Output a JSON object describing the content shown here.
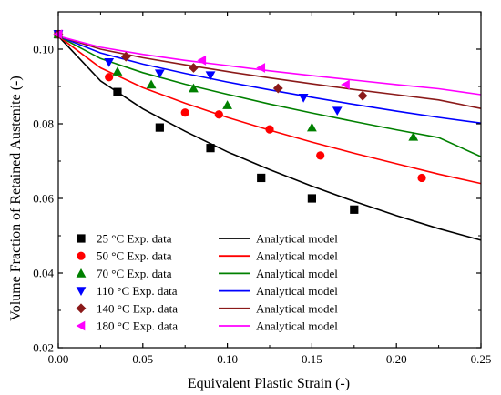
{
  "chart_data": {
    "type": "scatter",
    "xlabel": "Equivalent Plastic Strain (-)",
    "ylabel": "Volume Fraction of Retained Austenite (-)",
    "xlim": [
      0.0,
      0.25
    ],
    "ylim": [
      0.02,
      0.11
    ],
    "x_ticks": [
      0.0,
      0.05,
      0.1,
      0.15,
      0.2,
      0.25
    ],
    "x_tick_labels": [
      "0.00",
      "0.05",
      "0.10",
      "0.15",
      "0.20",
      "0.25"
    ],
    "y_ticks": [
      0.02,
      0.04,
      0.06,
      0.08,
      0.1
    ],
    "y_tick_labels": [
      "0.02",
      "0.04",
      "0.06",
      "0.08",
      "0.10"
    ],
    "grid": false,
    "legend_position": "lower-left",
    "series": [
      {
        "name": "25 °C Exp. data",
        "marker": "square",
        "color": "#000000",
        "x": [
          0.0,
          0.035,
          0.06,
          0.09,
          0.12,
          0.15,
          0.175
        ],
        "y": [
          0.104,
          0.0885,
          0.079,
          0.0735,
          0.0655,
          0.06,
          0.057
        ]
      },
      {
        "name": "50 °C Exp. data",
        "marker": "circle",
        "color": "#ff0000",
        "x": [
          0.0,
          0.03,
          0.075,
          0.095,
          0.125,
          0.155,
          0.215
        ],
        "y": [
          0.104,
          0.0925,
          0.083,
          0.0825,
          0.0785,
          0.0715,
          0.0655
        ]
      },
      {
        "name": "70 °C Exp. data",
        "marker": "triangle-up",
        "color": "#008000",
        "x": [
          0.0,
          0.035,
          0.055,
          0.08,
          0.1,
          0.15,
          0.21
        ],
        "y": [
          0.104,
          0.094,
          0.0905,
          0.0895,
          0.085,
          0.079,
          0.0765
        ]
      },
      {
        "name": "110 °C Exp. data",
        "marker": "triangle-down",
        "color": "#0000ff",
        "x": [
          0.0,
          0.03,
          0.06,
          0.09,
          0.145,
          0.165
        ],
        "y": [
          0.104,
          0.0965,
          0.0935,
          0.093,
          0.087,
          0.0835
        ]
      },
      {
        "name": "140 °C Exp. data",
        "marker": "diamond",
        "color": "#8b1a1a",
        "x": [
          0.0,
          0.04,
          0.08,
          0.13,
          0.18
        ],
        "y": [
          0.104,
          0.098,
          0.095,
          0.0895,
          0.0875
        ]
      },
      {
        "name": "180 °C Exp. data",
        "marker": "triangle-left",
        "color": "#ff00ff",
        "x": [
          0.0,
          0.085,
          0.12,
          0.17
        ],
        "y": [
          0.104,
          0.097,
          0.095,
          0.0905
        ]
      }
    ],
    "model_curves": [
      {
        "name": "Analytical model",
        "color": "#000000",
        "x": [
          0.0,
          0.025,
          0.05,
          0.075,
          0.1,
          0.125,
          0.15,
          0.175,
          0.2,
          0.225,
          0.25
        ],
        "y": [
          0.1035,
          0.0915,
          0.084,
          0.078,
          0.0725,
          0.0677,
          0.0633,
          0.0592,
          0.0554,
          0.0519,
          0.0488
        ]
      },
      {
        "name": "Analytical model",
        "color": "#ff0000",
        "x": [
          0.0,
          0.025,
          0.05,
          0.075,
          0.1,
          0.125,
          0.15,
          0.175,
          0.2,
          0.225,
          0.25
        ],
        "y": [
          0.1035,
          0.095,
          0.0897,
          0.0855,
          0.0817,
          0.0783,
          0.0751,
          0.0721,
          0.0693,
          0.0665,
          0.064
        ]
      },
      {
        "name": "Analytical model",
        "color": "#008000",
        "x": [
          0.0,
          0.025,
          0.05,
          0.075,
          0.1,
          0.125,
          0.15,
          0.175,
          0.2,
          0.225,
          0.25
        ],
        "y": [
          0.1035,
          0.0975,
          0.0937,
          0.0906,
          0.0879,
          0.0853,
          0.0829,
          0.0806,
          0.0784,
          0.0763,
          0.0712
        ]
      },
      {
        "name": "Analytical model",
        "color": "#0000ff",
        "x": [
          0.0,
          0.025,
          0.05,
          0.075,
          0.1,
          0.125,
          0.15,
          0.175,
          0.2,
          0.225,
          0.25
        ],
        "y": [
          0.1035,
          0.099,
          0.096,
          0.0935,
          0.0912,
          0.0891,
          0.0871,
          0.0852,
          0.0834,
          0.0817,
          0.0802
        ]
      },
      {
        "name": "Analytical model",
        "color": "#8b1a1a",
        "x": [
          0.0,
          0.025,
          0.05,
          0.075,
          0.1,
          0.125,
          0.15,
          0.175,
          0.2,
          0.225,
          0.25
        ],
        "y": [
          0.1035,
          0.1,
          0.0977,
          0.0958,
          0.094,
          0.0923,
          0.0907,
          0.0892,
          0.0878,
          0.0864,
          0.0841
        ]
      },
      {
        "name": "Analytical model",
        "color": "#ff00ff",
        "x": [
          0.0,
          0.025,
          0.05,
          0.075,
          0.1,
          0.125,
          0.15,
          0.175,
          0.2,
          0.225,
          0.25
        ],
        "y": [
          0.1035,
          0.1005,
          0.0986,
          0.097,
          0.0956,
          0.0942,
          0.0929,
          0.0917,
          0.0905,
          0.0894,
          0.0878
        ]
      }
    ]
  }
}
